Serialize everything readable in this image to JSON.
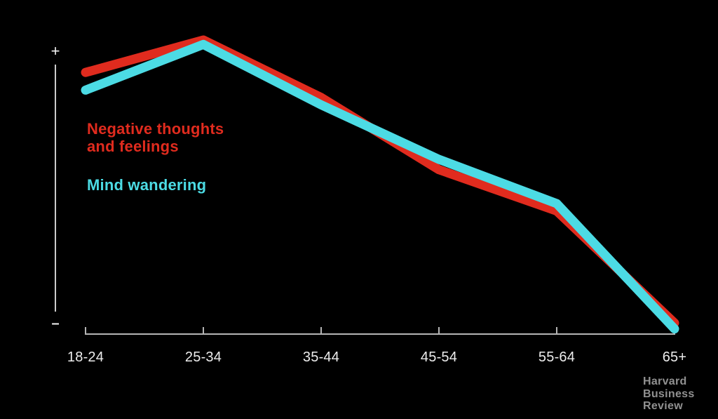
{
  "page": {
    "background": "#000000"
  },
  "chart_data": {
    "type": "line",
    "title": "",
    "categories": [
      "18-24",
      "25-34",
      "35-44",
      "45-54",
      "55-64",
      "65+"
    ],
    "series": [
      {
        "name": "Negative thoughts and feelings",
        "color": "#e02b1e",
        "values": [
          89,
          100,
          80.5,
          56,
          42,
          4
        ]
      },
      {
        "name": "Mind wandering",
        "color": "#4cdbe4",
        "values": [
          83,
          98.5,
          78,
          59.5,
          44.5,
          2
        ]
      }
    ],
    "xlabel": "",
    "ylabel": "",
    "ylim": [
      0,
      100
    ],
    "y_axis_endpoint_labels": {
      "top": "+",
      "bottom": "–"
    },
    "grid": false,
    "legend_position": "inside-upper-left",
    "axis_color": "#b5b5b5",
    "y_axis_color": "#cccccc",
    "tick_label_color": "#ededed"
  },
  "legend": {
    "series1": "Negative thoughts\nand feelings",
    "series2": "Mind wandering"
  },
  "y_axis": {
    "top_label": "+",
    "bottom_label": "–"
  },
  "branding": {
    "logo_text": "Harvard\nBusiness\nReview",
    "color": "#919191"
  }
}
